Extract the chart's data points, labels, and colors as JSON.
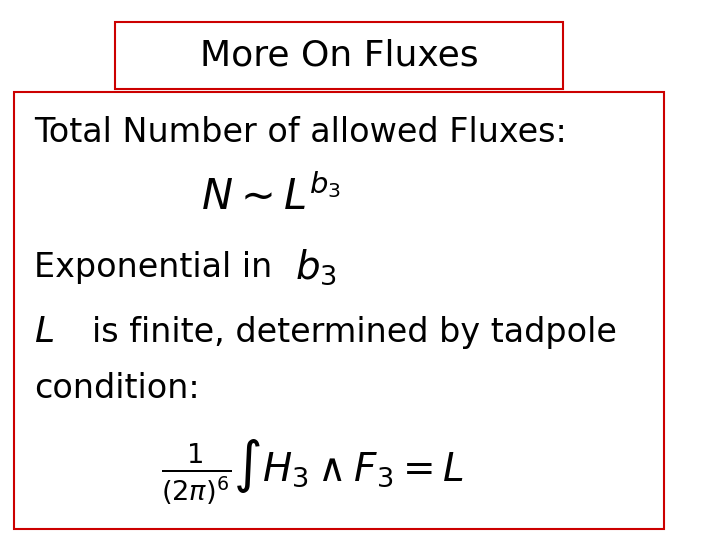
{
  "title": "More On Fluxes",
  "title_fontsize": 26,
  "content_fontsize": 24,
  "math_fontsize": 26,
  "bg_color": "#ffffff",
  "title_box_color": "#cc0000",
  "content_box_color": "#cc0000",
  "title_box_fill": "#ffffff",
  "content_box_fill": "#ffffff",
  "text_color": "#000000",
  "line1": "Total Number of allowed Fluxes:",
  "formula1": "$N \\sim L^{b_3}$",
  "line2_text": "Exponential in",
  "line2_math": "$b_3$",
  "line3_math": "$L$",
  "line3_text": "is finite, determined by tadpole",
  "line4": "condition:",
  "formula2": "$\\frac{1}{(2\\pi)^6} \\int H_3 \\wedge F_3 = L$"
}
